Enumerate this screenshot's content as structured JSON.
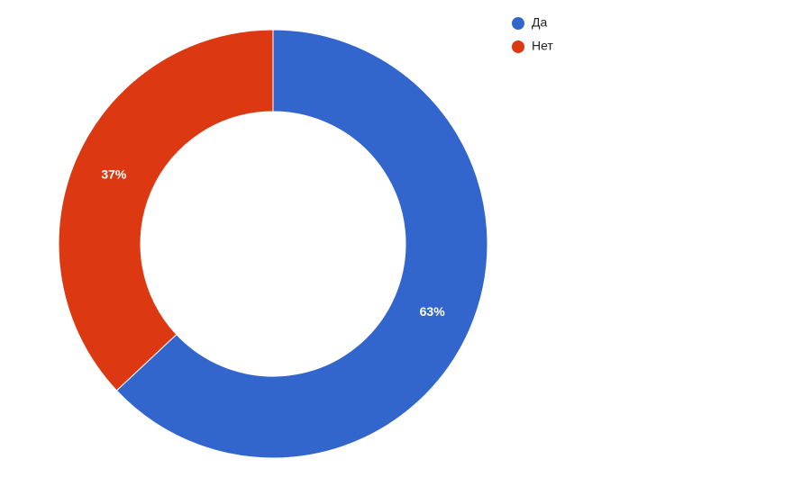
{
  "chart_data": {
    "type": "donut",
    "categories": [
      "Да",
      "Нет"
    ],
    "values": [
      63,
      37
    ],
    "value_labels": [
      "63%",
      "37%"
    ],
    "colors": [
      "#3366cc",
      "#dc3912"
    ],
    "legend": "top-right"
  }
}
